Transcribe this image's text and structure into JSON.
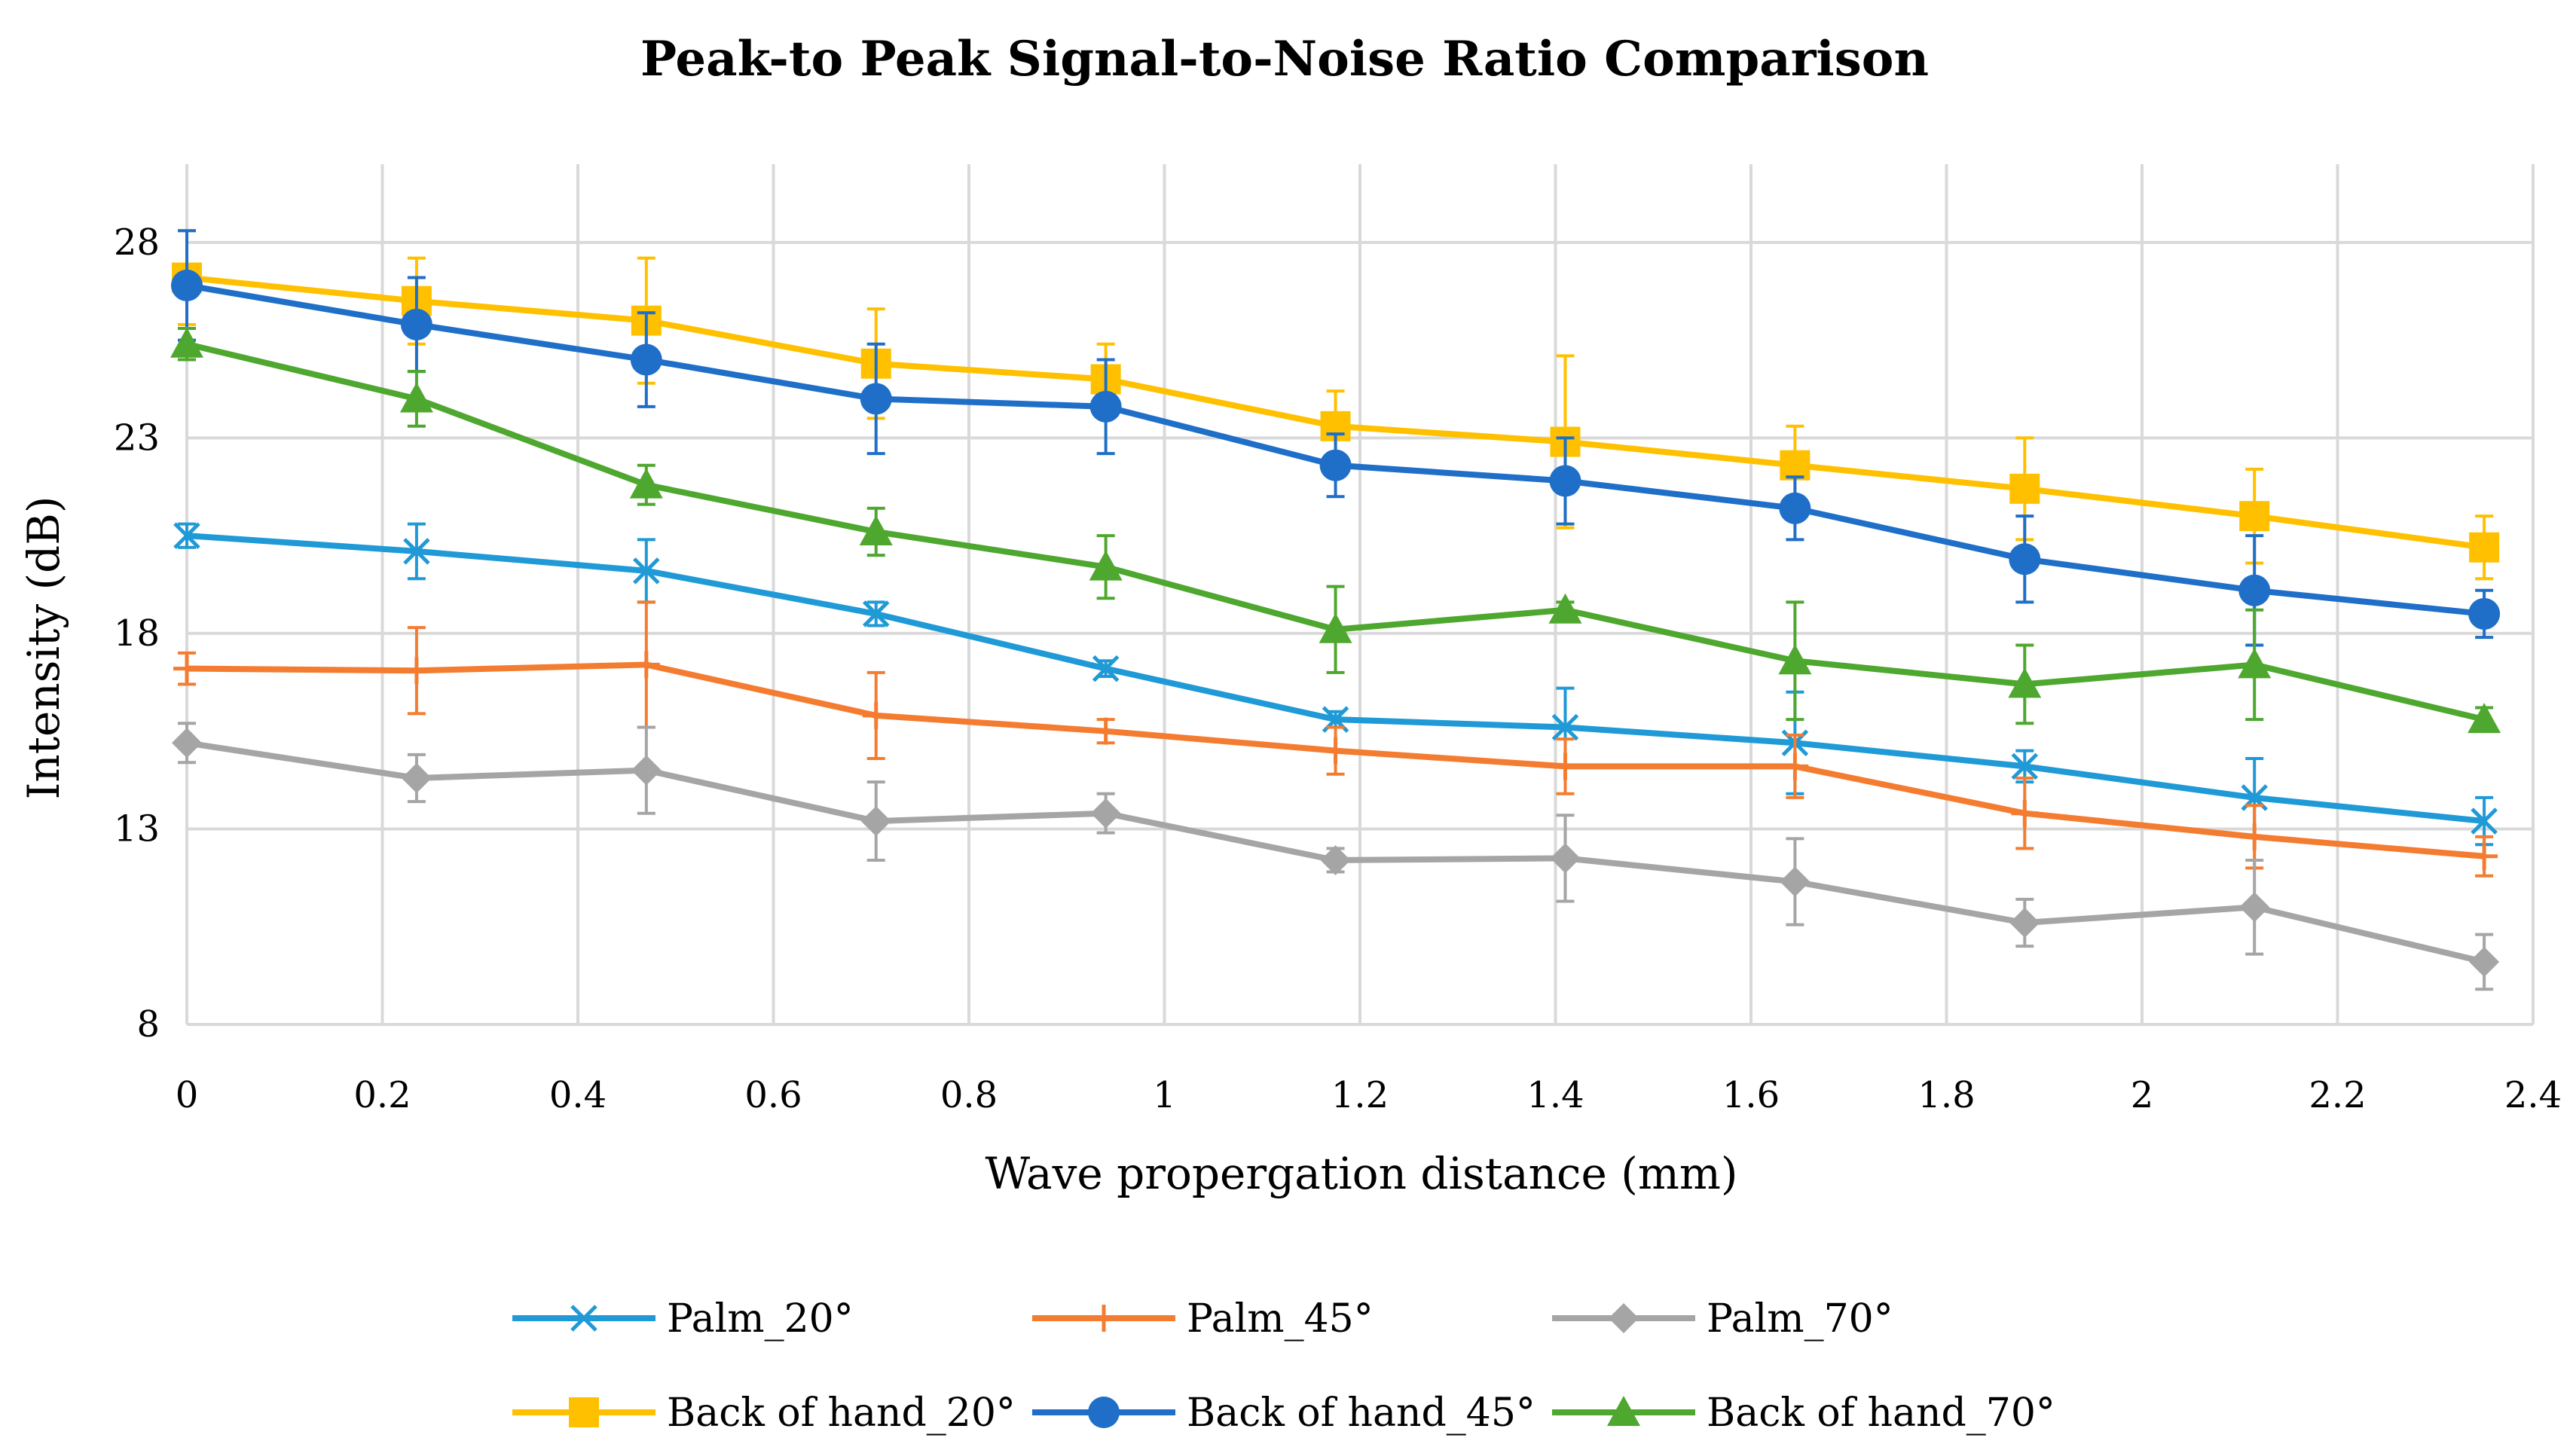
{
  "chart_data": {
    "type": "line",
    "title": "Peak-to Peak Signal-to-Noise Ratio Comparison",
    "xlabel": "Wave propergation distance (mm)",
    "ylabel": "Intensity (dB)",
    "xlim": [
      0,
      2.4
    ],
    "ylim": [
      8,
      30
    ],
    "xticks": [
      "0",
      "0.2",
      "0.4",
      "0.6",
      "0.8",
      "1",
      "1.2",
      "1.4",
      "1.6",
      "1.8",
      "2",
      "2.2",
      "2.4"
    ],
    "yticks": [
      "8",
      "13",
      "18",
      "23",
      "28"
    ],
    "grid": true,
    "legend_position": "bottom",
    "x": [
      0,
      0.235,
      0.47,
      0.705,
      0.94,
      1.175,
      1.41,
      1.645,
      1.88,
      2.115,
      2.35
    ],
    "series": [
      {
        "name": "Palm_20°",
        "color": "#1f9ad6",
        "marker": "x",
        "values": [
          20.5,
          20.1,
          19.6,
          18.5,
          17.1,
          15.8,
          15.6,
          15.2,
          14.6,
          13.8,
          13.2
        ],
        "errors": [
          0.3,
          0.7,
          0.8,
          0.3,
          0.2,
          0.2,
          1.0,
          1.3,
          0.4,
          1.0,
          0.6
        ]
      },
      {
        "name": "Palm_45°",
        "color": "#f47c30",
        "marker": "dash",
        "values": [
          17.1,
          17.05,
          17.2,
          15.9,
          15.5,
          15.0,
          14.6,
          14.6,
          13.4,
          12.8,
          12.3
        ],
        "errors": [
          0.4,
          1.1,
          1.6,
          1.1,
          0.3,
          0.6,
          0.7,
          0.8,
          0.9,
          0.8,
          0.5
        ]
      },
      {
        "name": "Palm_70°",
        "color": "#a5a5a5",
        "marker": "diamond",
        "values": [
          15.2,
          14.3,
          14.5,
          13.2,
          13.4,
          12.2,
          12.25,
          11.65,
          10.6,
          11.0,
          9.6
        ],
        "errors": [
          0.5,
          0.6,
          1.1,
          1.0,
          0.5,
          0.3,
          1.1,
          1.1,
          0.6,
          1.2,
          0.7
        ]
      },
      {
        "name": "Back of hand_20°",
        "color": "#ffc000",
        "marker": "square",
        "values": [
          27.1,
          26.5,
          26.0,
          24.9,
          24.5,
          23.3,
          22.9,
          22.3,
          21.7,
          21.0,
          20.2
        ],
        "errors": [
          1.2,
          1.1,
          1.6,
          1.4,
          0.9,
          0.9,
          2.2,
          1.0,
          1.3,
          1.2,
          0.8
        ]
      },
      {
        "name": "Back of hand_45°",
        "color": "#1f6fc8",
        "marker": "circle",
        "values": [
          26.9,
          25.9,
          25.0,
          24.0,
          23.8,
          22.3,
          21.9,
          21.2,
          19.9,
          19.1,
          18.5
        ],
        "errors": [
          1.4,
          1.2,
          1.2,
          1.4,
          1.2,
          0.8,
          1.1,
          0.8,
          1.1,
          1.4,
          0.6
        ]
      },
      {
        "name": "Back of hand_70°",
        "color": "#4ea72e",
        "marker": "triangle",
        "values": [
          25.4,
          24.0,
          21.8,
          20.6,
          19.7,
          18.1,
          18.6,
          17.3,
          16.7,
          17.2,
          15.8
        ],
        "errors": [
          0.4,
          0.7,
          0.5,
          0.6,
          0.8,
          1.1,
          0.2,
          1.5,
          1.0,
          1.4,
          0.3
        ]
      }
    ]
  }
}
